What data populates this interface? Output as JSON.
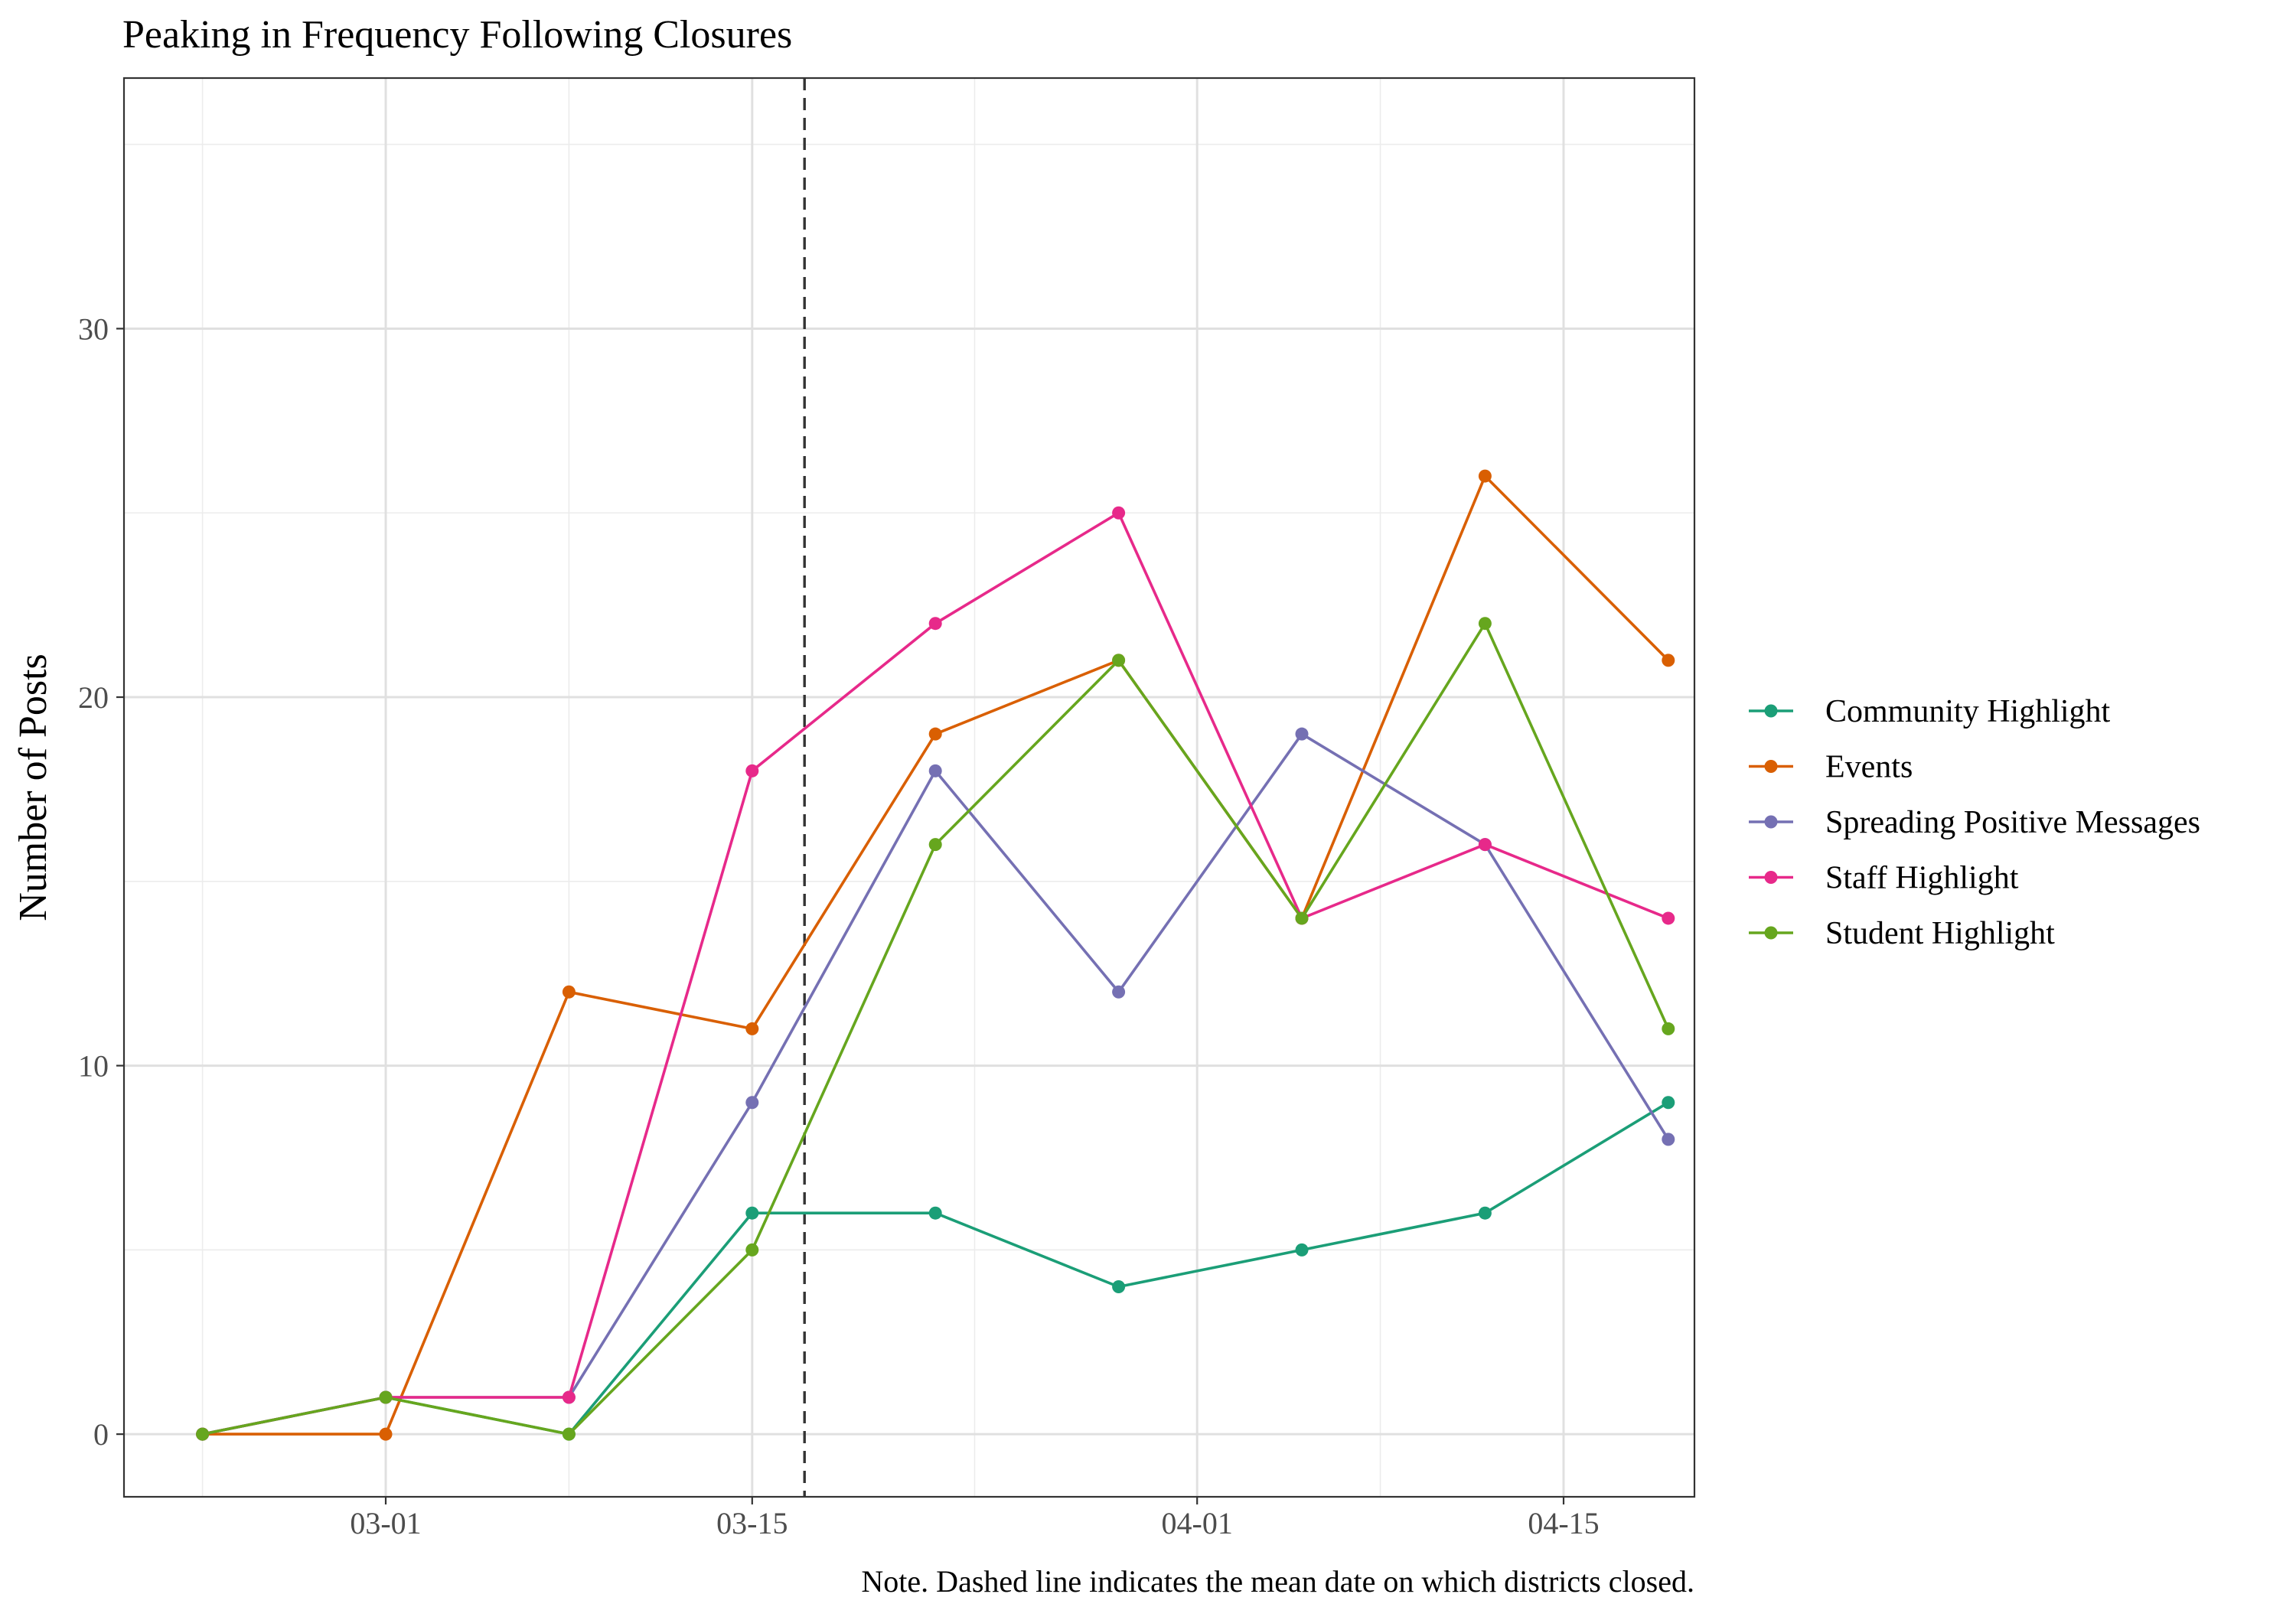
{
  "chart_data": {
    "type": "line",
    "title": "Peaking in Frequency Following Closures",
    "xlabel": "",
    "ylabel": "Number of Posts",
    "note": "Note. Dashed line indicates the mean date on which districts closed.",
    "x": [
      "2020-02-23",
      "2020-03-01",
      "2020-03-08",
      "2020-03-15",
      "2020-03-22",
      "2020-03-29",
      "2020-04-05",
      "2020-04-12",
      "2020-04-19"
    ],
    "x_ticks": [
      "03-01",
      "03-15",
      "04-01",
      "04-15"
    ],
    "y_ticks": [
      "0",
      "10",
      "20",
      "30"
    ],
    "xlim": [
      "2020-02-20",
      "2020-04-20"
    ],
    "ylim": [
      -1.7,
      36.8
    ],
    "grid": true,
    "legend_position": "right",
    "closure_date": "2020-03-17",
    "series": [
      {
        "name": "Community Highlight",
        "color": "#1b9e77",
        "values": [
          0,
          1,
          0,
          6,
          6,
          4,
          5,
          6,
          9
        ]
      },
      {
        "name": "Events",
        "color": "#d95f02",
        "values": [
          0,
          0,
          12,
          11,
          19,
          21,
          14,
          26,
          21
        ]
      },
      {
        "name": "Spreading Positive Messages",
        "color": "#7570b3",
        "values": [
          0,
          1,
          1,
          9,
          18,
          12,
          19,
          16,
          8
        ]
      },
      {
        "name": "Staff Highlight",
        "color": "#e7298a",
        "values": [
          0,
          1,
          1,
          18,
          22,
          25,
          14,
          16,
          14
        ]
      },
      {
        "name": "Student Highlight",
        "color": "#66a61e",
        "values": [
          0,
          1,
          0,
          5,
          16,
          21,
          14,
          22,
          11
        ]
      }
    ]
  }
}
